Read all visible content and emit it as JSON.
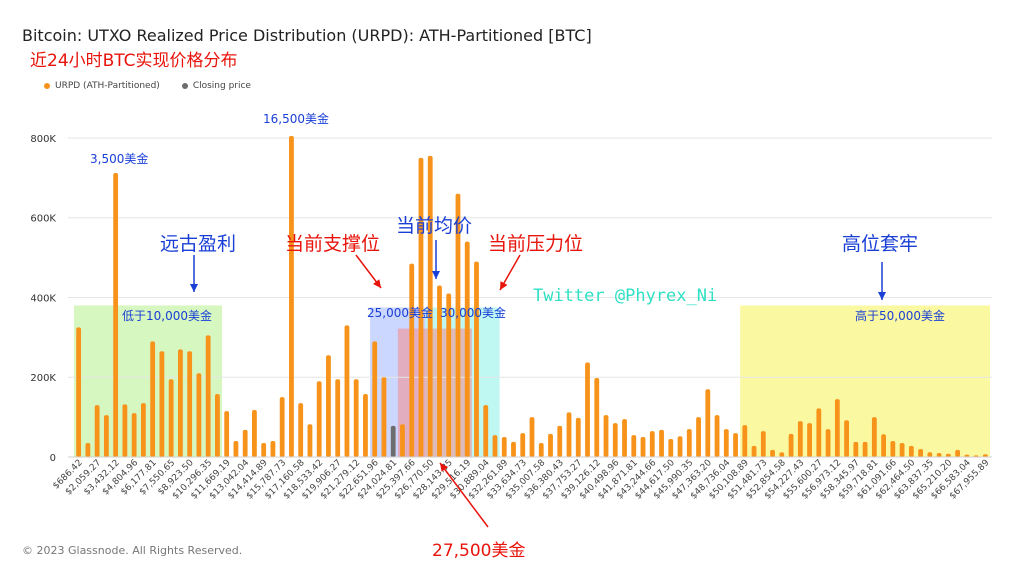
{
  "header": {
    "title": "Bitcoin: UTXO Realized Price Distribution (URPD): ATH-Partitioned [BTC]",
    "subtitle": "近24小时BTC实现价格分布"
  },
  "legend": {
    "items": [
      {
        "label": "URPD (ATH-Partitioned)",
        "color": "#f7931a"
      },
      {
        "label": "Closing price",
        "color": "#6d6d6d"
      }
    ]
  },
  "footer": {
    "copyright": "© 2023 Glassnode. All Rights Reserved."
  },
  "chart_data": {
    "type": "bar",
    "title": "Bitcoin: UTXO Realized Price Distribution (URPD): ATH-Partitioned [BTC]",
    "xlabel": "",
    "ylabel": "",
    "ylim": [
      0,
      850000
    ],
    "yticks": [
      0,
      200000,
      400000,
      600000,
      800000
    ],
    "ytick_labels": [
      "0",
      "200K",
      "400K",
      "600K",
      "800K"
    ],
    "grid": true,
    "bar_color": "#f7931a",
    "closing_color": "#6d6d6d",
    "closing_index": 34,
    "values": [
      325000,
      35000,
      130000,
      105000,
      712000,
      132000,
      110000,
      135000,
      290000,
      265000,
      195000,
      270000,
      265000,
      210000,
      305000,
      158000,
      115000,
      40000,
      68000,
      118000,
      35000,
      40000,
      150000,
      805000,
      135000,
      82000,
      190000,
      255000,
      195000,
      330000,
      195000,
      158000,
      290000,
      200000,
      78000,
      82000,
      485000,
      750000,
      755000,
      430000,
      410000,
      660000,
      540000,
      490000,
      130000,
      55000,
      50000,
      38000,
      60000,
      100000,
      35000,
      58000,
      78000,
      112000,
      98000,
      237000,
      198000,
      105000,
      85000,
      95000,
      55000,
      50000,
      65000,
      68000,
      45000,
      52000,
      70000,
      100000,
      170000,
      105000,
      70000,
      60000,
      80000,
      28000,
      65000,
      18000,
      12000,
      58000,
      90000,
      85000,
      122000,
      70000,
      145000,
      92000,
      38000,
      38000,
      100000,
      57000,
      40000,
      35000,
      28000,
      20000,
      12000,
      10000,
      8000,
      18000,
      6000,
      4000,
      7000
    ],
    "tick_labels": [
      "$686.42",
      "$2,059.27",
      "$3,432.12",
      "$4,804.96",
      "$6,177.81",
      "$7,550.65",
      "$8,923.50",
      "$10,296.35",
      "$11,669.19",
      "$13,042.04",
      "$14,414.89",
      "$15,787.73",
      "$17,160.58",
      "$18,533.42",
      "$19,906.27",
      "$21,279.12",
      "$22,651.96",
      "$24,024.81",
      "$25,397.66",
      "$26,770.50",
      "$28,143.35",
      "$29,516.19",
      "$30,889.04",
      "$32,261.89",
      "$33,634.73",
      "$35,007.58",
      "$36,380.43",
      "$37,753.27",
      "$39,126.12",
      "$40,498.96",
      "$41,871.81",
      "$43,244.66",
      "$44,617.50",
      "$45,990.35",
      "$47,363.20",
      "$48,736.04",
      "$50,108.89",
      "$51,481.73",
      "$52,854.58",
      "$54,227.43",
      "$55,600.27",
      "$56,973.12",
      "$58,345.97",
      "$59,718.81",
      "$61,091.66",
      "$62,464.50",
      "$63,837.35",
      "$65,210.20",
      "$66,583.04",
      "$67,955.89"
    ],
    "annotations": {
      "peak_3500": "3,500美金",
      "peak_16500": "16,500美金",
      "ancient_profit": "远古盈利",
      "below_10000": "低于10,000美金",
      "current_support": "当前支撑位",
      "current_average": "当前均价",
      "current_resistance": "当前压力位",
      "level_25000": "25,000美金",
      "level_30000": "30,000美金",
      "closing_27500": "27,500美金",
      "twitter": "Twitter @Phyrex_Ni",
      "high_trapped": "高位套牢",
      "above_50000": "高于50,000美金"
    }
  }
}
